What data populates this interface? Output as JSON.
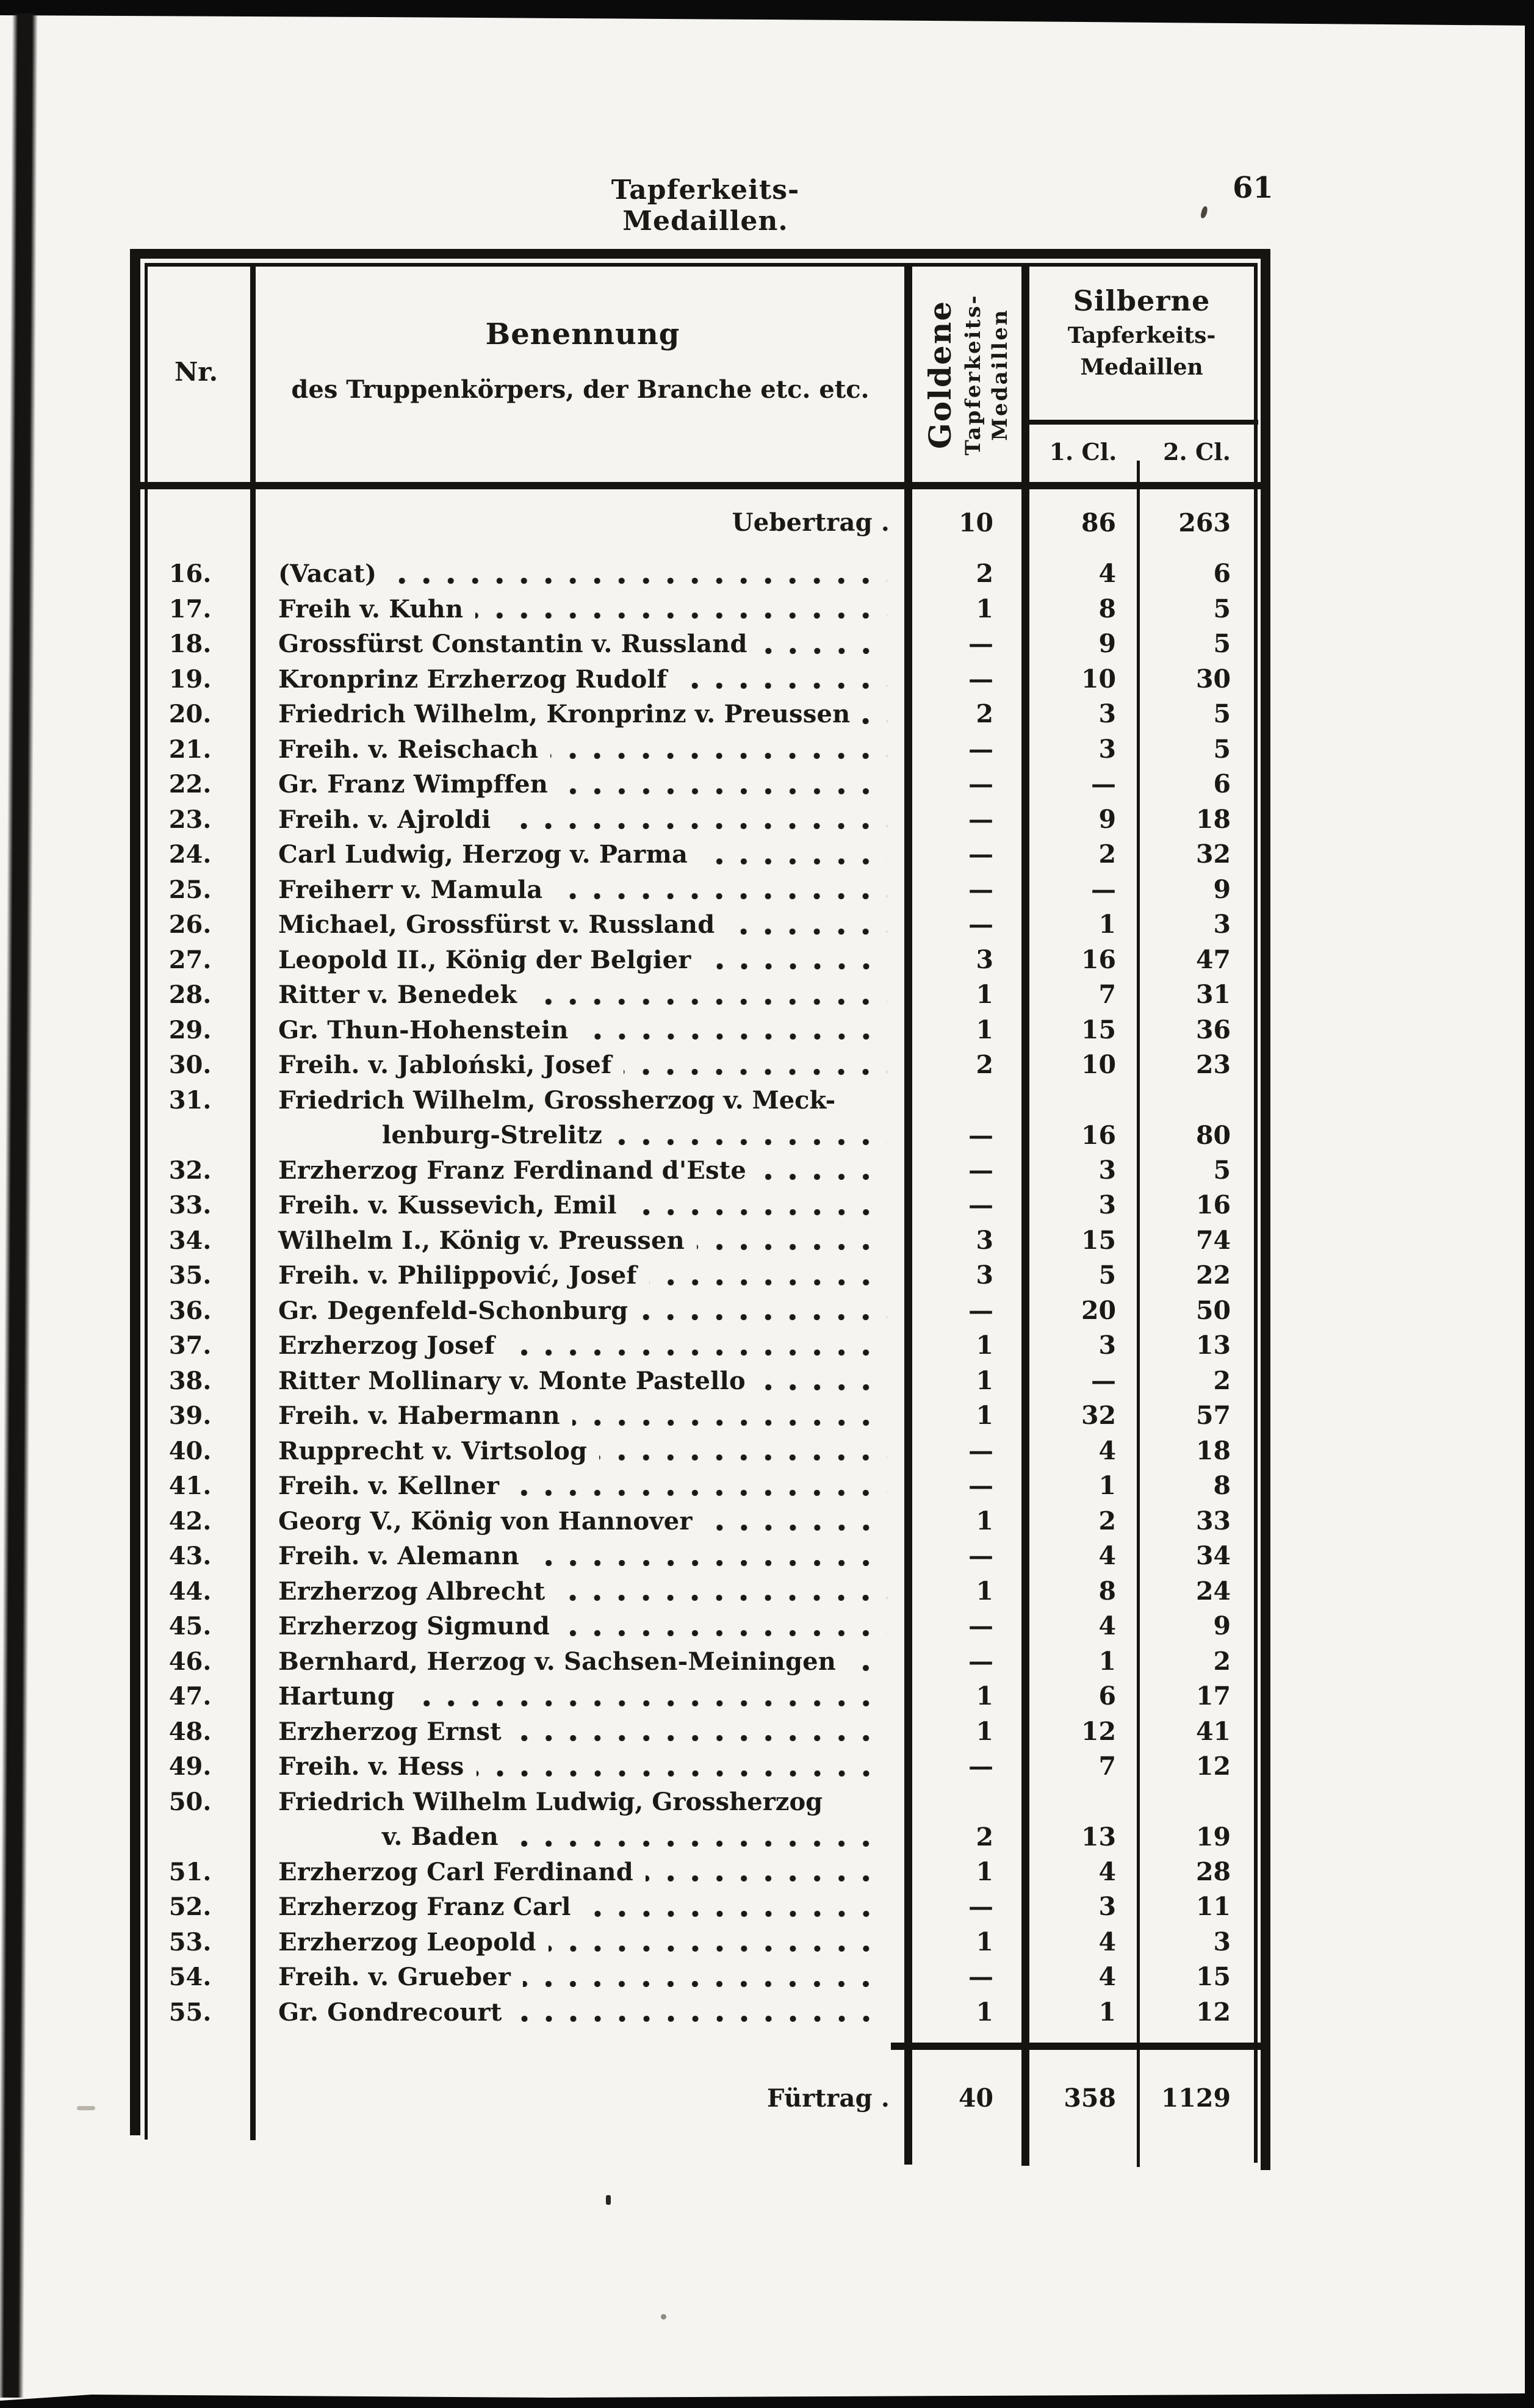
{
  "page": {
    "running_title": "Tapferkeits-Medaillen.",
    "page_number": "61"
  },
  "table": {
    "header": {
      "nr": "Nr.",
      "benennung_line1": "Benennung",
      "benennung_line2": "des Truppenkörpers, der Branche etc. etc.",
      "gold_lines": [
        "Goldene",
        "Tapferkeits-",
        "Medaillen"
      ],
      "silver_lines": [
        "Silberne",
        "Tapferkeits-",
        "Medaillen"
      ],
      "silver_sub": [
        "1. Cl.",
        "2. Cl."
      ]
    },
    "carry_forward": {
      "label": "Uebertrag .",
      "gold": "10",
      "cl1": "86",
      "cl2": "263"
    },
    "rows": [
      {
        "nr": "16.",
        "name": "(Vacat)",
        "gold": "2",
        "cl1": "4",
        "cl2": "6"
      },
      {
        "nr": "17.",
        "name": "Freih v. Kuhn",
        "gold": "1",
        "cl1": "8",
        "cl2": "5"
      },
      {
        "nr": "18.",
        "name": "Grossfürst Constantin v. Russland",
        "gold": "—",
        "cl1": "9",
        "cl2": "5"
      },
      {
        "nr": "19.",
        "name": "Kronprinz Erzherzog Rudolf",
        "gold": "—",
        "cl1": "10",
        "cl2": "30"
      },
      {
        "nr": "20.",
        "name": "Friedrich Wilhelm, Kronprinz v. Preussen",
        "gold": "2",
        "cl1": "3",
        "cl2": "5"
      },
      {
        "nr": "21.",
        "name": "Freih. v. Reischach",
        "gold": "—",
        "cl1": "3",
        "cl2": "5"
      },
      {
        "nr": "22.",
        "name": "Gr. Franz Wimpffen",
        "gold": "—",
        "cl1": "—",
        "cl2": "6"
      },
      {
        "nr": "23.",
        "name": "Freih. v. Ajroldi",
        "gold": "—",
        "cl1": "9",
        "cl2": "18"
      },
      {
        "nr": "24.",
        "name": "Carl Ludwig, Herzog v. Parma",
        "gold": "—",
        "cl1": "2",
        "cl2": "32"
      },
      {
        "nr": "25.",
        "name": "Freiherr v. Mamula",
        "gold": "—",
        "cl1": "—",
        "cl2": "9"
      },
      {
        "nr": "26.",
        "name": "Michael, Grossfürst v. Russland",
        "gold": "—",
        "cl1": "1",
        "cl2": "3"
      },
      {
        "nr": "27.",
        "name": "Leopold II., König der Belgier",
        "gold": "3",
        "cl1": "16",
        "cl2": "47"
      },
      {
        "nr": "28.",
        "name": "Ritter v. Benedek",
        "gold": "1",
        "cl1": "7",
        "cl2": "31"
      },
      {
        "nr": "29.",
        "name": "Gr. Thun-Hohenstein",
        "gold": "1",
        "cl1": "15",
        "cl2": "36"
      },
      {
        "nr": "30.",
        "name": "Freih. v. Jabloński, Josef",
        "gold": "2",
        "cl1": "10",
        "cl2": "23"
      },
      {
        "nr": "31.",
        "name": "Friedrich Wilhelm, Grossherzog v. Meck-",
        "name2": "lenburg-Strelitz",
        "gold": "—",
        "cl1": "16",
        "cl2": "80"
      },
      {
        "nr": "32.",
        "name": "Erzherzog Franz Ferdinand d'Este",
        "gold": "—",
        "cl1": "3",
        "cl2": "5"
      },
      {
        "nr": "33.",
        "name": "Freih. v. Kussevich, Emil",
        "gold": "—",
        "cl1": "3",
        "cl2": "16"
      },
      {
        "nr": "34.",
        "name": "Wilhelm I., König v. Preussen",
        "gold": "3",
        "cl1": "15",
        "cl2": "74"
      },
      {
        "nr": "35.",
        "name": "Freih. v. Philippović, Josef",
        "gold": "3",
        "cl1": "5",
        "cl2": "22"
      },
      {
        "nr": "36.",
        "name": "Gr. Degenfeld-Schonburg",
        "gold": "—",
        "cl1": "20",
        "cl2": "50"
      },
      {
        "nr": "37.",
        "name": "Erzherzog Josef",
        "gold": "1",
        "cl1": "3",
        "cl2": "13"
      },
      {
        "nr": "38.",
        "name": "Ritter Mollinary v. Monte Pastello",
        "gold": "1",
        "cl1": "—",
        "cl2": "2"
      },
      {
        "nr": "39.",
        "name": "Freih. v. Habermann",
        "gold": "1",
        "cl1": "32",
        "cl2": "57"
      },
      {
        "nr": "40.",
        "name": "Rupprecht v. Virtsolog",
        "gold": "—",
        "cl1": "4",
        "cl2": "18"
      },
      {
        "nr": "41.",
        "name": "Freih. v. Kellner",
        "gold": "—",
        "cl1": "1",
        "cl2": "8"
      },
      {
        "nr": "42.",
        "name": "Georg V., König von Hannover",
        "gold": "1",
        "cl1": "2",
        "cl2": "33"
      },
      {
        "nr": "43.",
        "name": "Freih. v. Alemann",
        "gold": "—",
        "cl1": "4",
        "cl2": "34"
      },
      {
        "nr": "44.",
        "name": "Erzherzog Albrecht",
        "gold": "1",
        "cl1": "8",
        "cl2": "24"
      },
      {
        "nr": "45.",
        "name": "Erzherzog Sigmund",
        "gold": "—",
        "cl1": "4",
        "cl2": "9"
      },
      {
        "nr": "46.",
        "name": "Bernhard, Herzog v. Sachsen-Meiningen",
        "gold": "—",
        "cl1": "1",
        "cl2": "2"
      },
      {
        "nr": "47.",
        "name": "Hartung",
        "gold": "1",
        "cl1": "6",
        "cl2": "17"
      },
      {
        "nr": "48.",
        "name": "Erzherzog Ernst",
        "gold": "1",
        "cl1": "12",
        "cl2": "41"
      },
      {
        "nr": "49.",
        "name": "Freih. v. Hess",
        "gold": "—",
        "cl1": "7",
        "cl2": "12"
      },
      {
        "nr": "50.",
        "name": "Friedrich Wilhelm Ludwig, Grossherzog",
        "name2": "v. Baden",
        "gold": "2",
        "cl1": "13",
        "cl2": "19"
      },
      {
        "nr": "51.",
        "name": "Erzherzog Carl Ferdinand",
        "gold": "1",
        "cl1": "4",
        "cl2": "28"
      },
      {
        "nr": "52.",
        "name": "Erzherzog Franz Carl",
        "gold": "—",
        "cl1": "3",
        "cl2": "11"
      },
      {
        "nr": "53.",
        "name": "Erzherzog Leopold",
        "gold": "1",
        "cl1": "4",
        "cl2": "3"
      },
      {
        "nr": "54.",
        "name": "Freih. v. Grueber",
        "gold": "—",
        "cl1": "4",
        "cl2": "15"
      },
      {
        "nr": "55.",
        "name": "Gr. Gondrecourt",
        "gold": "1",
        "cl1": "1",
        "cl2": "12"
      }
    ],
    "total": {
      "label": "Fürtrag .",
      "gold": "40",
      "cl1": "358",
      "cl2": "1129"
    }
  }
}
